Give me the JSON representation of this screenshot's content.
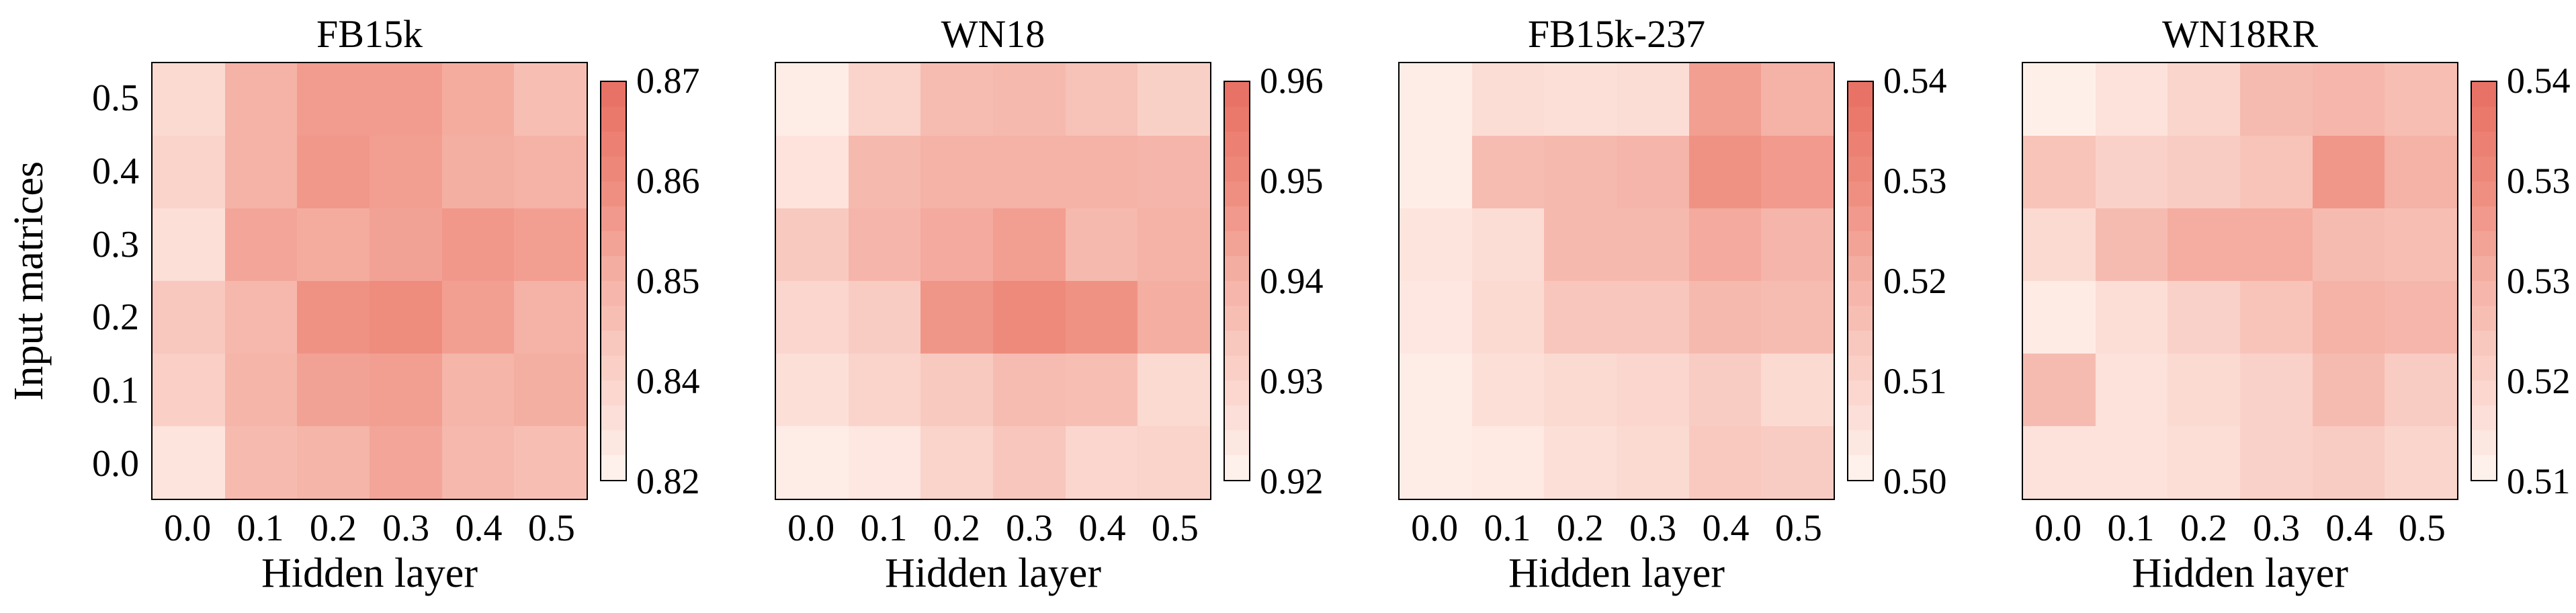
{
  "figure": {
    "x_axis_title": "Hidden layer",
    "y_axis_title": "Input matrices",
    "x_tick_labels": [
      "0.0",
      "0.1",
      "0.2",
      "0.3",
      "0.4",
      "0.5"
    ],
    "y_tick_labels": [
      "0.5",
      "0.4",
      "0.3",
      "0.2",
      "0.1",
      "0.0"
    ],
    "colors": {
      "background": "#ffffff",
      "border": "#000000",
      "colormap_low": "#fff4ee",
      "colormap_mid": "#f5b2a6",
      "colormap_high": "#e76f63"
    }
  },
  "chart_data": {
    "type": "heatmap",
    "layout": "4 side-by-side 6x6 heatmaps sharing axis scheme, each with its own colorbar",
    "xlabel": "Hidden layer",
    "ylabel": "Input matrices",
    "x": [
      0.0,
      0.1,
      0.2,
      0.3,
      0.4,
      0.5
    ],
    "y_top_to_bottom": [
      0.5,
      0.4,
      0.3,
      0.2,
      0.1,
      0.0
    ],
    "legend_position": "right colorbar per panel",
    "grid": false,
    "panels": [
      {
        "title": "FB15k",
        "color_domain": [
          0.82,
          0.87
        ],
        "colorbar_ticks": [
          "0.87",
          "0.86",
          "0.85",
          "0.84",
          "0.82"
        ],
        "values_rows_y_0p5_to_0p0": [
          [
            0.83,
            0.845,
            0.852,
            0.852,
            0.847,
            0.84
          ],
          [
            0.832,
            0.845,
            0.853,
            0.851,
            0.846,
            0.845
          ],
          [
            0.828,
            0.849,
            0.847,
            0.85,
            0.853,
            0.851
          ],
          [
            0.837,
            0.843,
            0.855,
            0.857,
            0.851,
            0.845
          ],
          [
            0.834,
            0.844,
            0.85,
            0.851,
            0.844,
            0.846
          ],
          [
            0.826,
            0.842,
            0.844,
            0.849,
            0.843,
            0.84
          ]
        ]
      },
      {
        "title": "WN18",
        "color_domain": [
          0.92,
          0.96
        ],
        "colorbar_ticks": [
          "0.96",
          "0.95",
          "0.94",
          "0.93",
          "0.92"
        ],
        "values_rows_y_0p5_to_0p0": [
          [
            0.922,
            0.93,
            0.937,
            0.938,
            0.935,
            0.931
          ],
          [
            0.925,
            0.938,
            0.94,
            0.94,
            0.94,
            0.939
          ],
          [
            0.933,
            0.939,
            0.942,
            0.945,
            0.938,
            0.94
          ],
          [
            0.929,
            0.932,
            0.947,
            0.95,
            0.948,
            0.941
          ],
          [
            0.926,
            0.93,
            0.933,
            0.937,
            0.936,
            0.928
          ],
          [
            0.922,
            0.924,
            0.93,
            0.934,
            0.929,
            0.93
          ]
        ]
      },
      {
        "title": "FB15k-237",
        "color_domain": [
          0.5,
          0.54
        ],
        "colorbar_ticks": [
          "0.54",
          "0.53",
          "0.52",
          "0.51",
          "0.50"
        ],
        "values_rows_y_0p5_to_0p0": [
          [
            0.502,
            0.507,
            0.506,
            0.507,
            0.525,
            0.52
          ],
          [
            0.502,
            0.517,
            0.518,
            0.519,
            0.528,
            0.526
          ],
          [
            0.505,
            0.507,
            0.518,
            0.518,
            0.522,
            0.519
          ],
          [
            0.504,
            0.508,
            0.514,
            0.514,
            0.518,
            0.517
          ],
          [
            0.502,
            0.506,
            0.508,
            0.509,
            0.512,
            0.508
          ],
          [
            0.502,
            0.503,
            0.506,
            0.508,
            0.513,
            0.512
          ]
        ]
      },
      {
        "title": "WN18RR",
        "color_domain": [
          0.51,
          0.54
        ],
        "colorbar_ticks": [
          "0.54",
          "0.53",
          "0.53",
          "0.52",
          "0.51"
        ],
        "values_rows_y_0p5_to_0p0": [
          [
            0.511,
            0.514,
            0.517,
            0.523,
            0.524,
            0.522
          ],
          [
            0.521,
            0.518,
            0.519,
            0.521,
            0.53,
            0.525
          ],
          [
            0.516,
            0.523,
            0.526,
            0.526,
            0.523,
            0.522
          ],
          [
            0.512,
            0.515,
            0.518,
            0.521,
            0.525,
            0.524
          ],
          [
            0.523,
            0.514,
            0.516,
            0.518,
            0.523,
            0.519
          ],
          [
            0.514,
            0.514,
            0.515,
            0.518,
            0.519,
            0.517
          ]
        ]
      }
    ]
  }
}
